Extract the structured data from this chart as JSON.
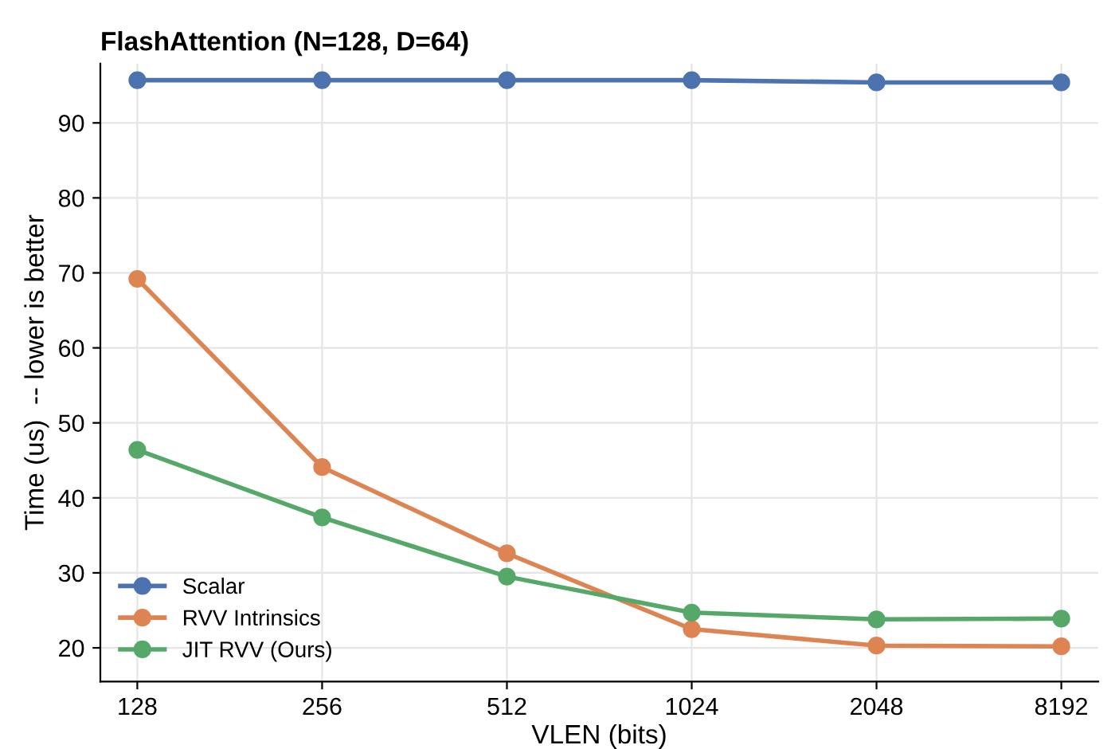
{
  "chart_data": {
    "type": "line",
    "title": "FlashAttention (N=128, D=64)",
    "xlabel": "VLEN (bits)",
    "ylabel": "Time (us)  -- lower is better",
    "categories": [
      "128",
      "256",
      "512",
      "1024",
      "2048",
      "8192"
    ],
    "series": [
      {
        "name": "Scalar",
        "color": "#4c72b0",
        "values": [
          95.7,
          95.7,
          95.7,
          95.7,
          95.4,
          95.4
        ]
      },
      {
        "name": "RVV Intrinsics",
        "color": "#dd8452",
        "values": [
          69.2,
          44.1,
          32.6,
          22.5,
          20.3,
          20.2
        ]
      },
      {
        "name": "JIT RVV (Ours)",
        "color": "#55a868",
        "values": [
          46.4,
          37.4,
          29.5,
          24.7,
          23.8,
          23.9
        ]
      }
    ],
    "ylim": [
      15.5,
      97.9
    ],
    "yticks": [
      20,
      30,
      40,
      50,
      60,
      70,
      80,
      90
    ],
    "grid": true,
    "legend": "bottom left",
    "marker": "circle",
    "line_style": "solid"
  }
}
